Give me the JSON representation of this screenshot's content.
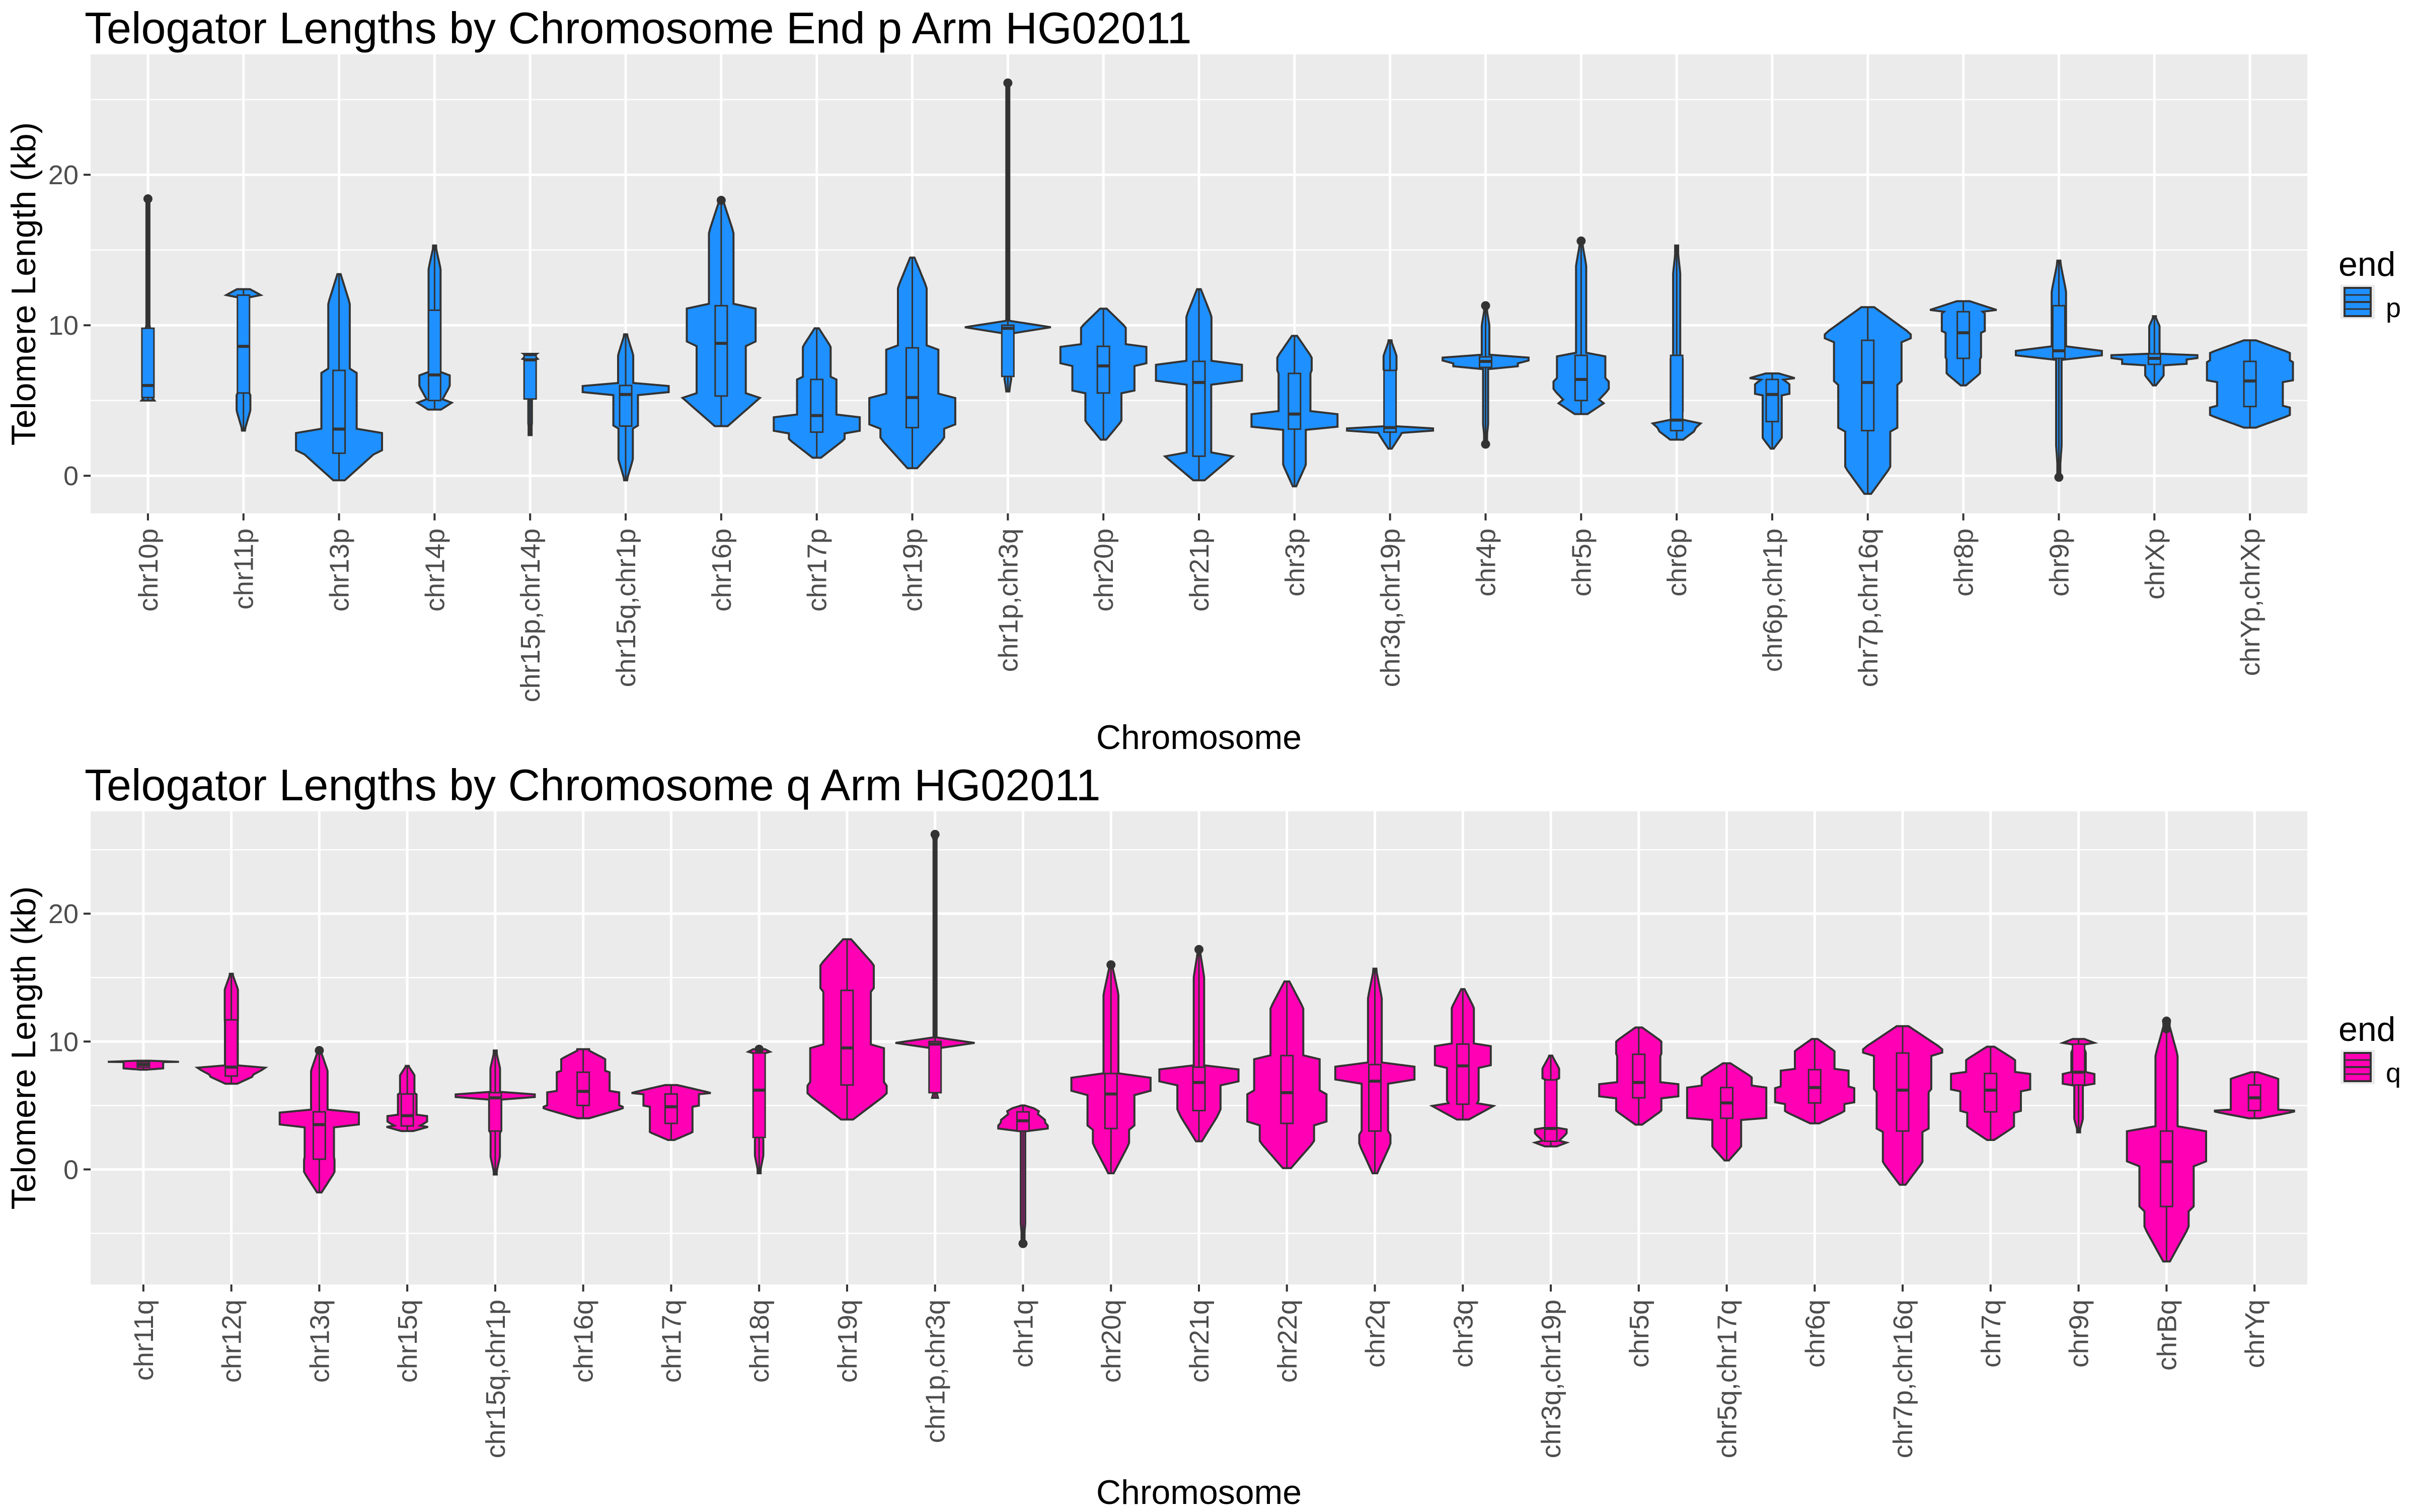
{
  "chart_data": [
    {
      "type": "violin",
      "title": "Telogator Lengths by Chromosome End p Arm HG02011",
      "xlabel": "Chromosome",
      "ylabel": "Telomere Length (kb)",
      "ylim": [
        -2.5,
        28
      ],
      "yticks": [
        0,
        10,
        20
      ],
      "grid": true,
      "legend": {
        "title": "end",
        "label": "p",
        "placement": "right"
      },
      "fill_color": "#1E90FF",
      "outline_color": "#333333",
      "categories": [
        "chr10p",
        "chr11p",
        "chr13p",
        "chr14p",
        "chr15p,chr14p",
        "chr15q,chr1p",
        "chr16p",
        "chr17p",
        "chr19p",
        "chr1p,chr3q",
        "chr20p",
        "chr21p",
        "chr3p",
        "chr3q,chr19p",
        "chr4p",
        "chr5p",
        "chr6p",
        "chr6p,chr1p",
        "chr7p,chr16q",
        "chr8p",
        "chr9p",
        "chrXp",
        "chrYp,chrXp"
      ],
      "series": [
        {
          "min": 5.0,
          "q1": 5.2,
          "median": 6.0,
          "q3": 9.8,
          "max": 18.4,
          "outliers": [
            18.4
          ]
        },
        {
          "min": 3.0,
          "q1": 5.5,
          "median": 8.6,
          "q3": 12.0,
          "max": 12.4,
          "outliers": []
        },
        {
          "min": -0.3,
          "q1": 1.5,
          "median": 3.1,
          "q3": 7.0,
          "max": 13.4,
          "outliers": []
        },
        {
          "min": 4.4,
          "q1": 5.0,
          "median": 6.7,
          "q3": 11.0,
          "max": 15.3,
          "outliers": []
        },
        {
          "min": 2.7,
          "q1": 5.1,
          "median": 7.7,
          "q3": 8.0,
          "max": 8.1,
          "outliers": []
        },
        {
          "min": -0.3,
          "q1": 3.3,
          "median": 5.4,
          "q3": 6.0,
          "max": 9.4,
          "outliers": []
        },
        {
          "min": 3.3,
          "q1": 5.3,
          "median": 8.8,
          "q3": 11.3,
          "max": 18.3,
          "outliers": [
            18.3
          ]
        },
        {
          "min": 1.2,
          "q1": 2.9,
          "median": 4.0,
          "q3": 6.4,
          "max": 9.8,
          "outliers": []
        },
        {
          "min": 0.5,
          "q1": 3.2,
          "median": 5.2,
          "q3": 8.5,
          "max": 14.5,
          "outliers": []
        },
        {
          "min": 5.6,
          "q1": 6.6,
          "median": 9.8,
          "q3": 10.0,
          "max": 26.1,
          "outliers": [
            26.1
          ]
        },
        {
          "min": 2.4,
          "q1": 5.5,
          "median": 7.3,
          "q3": 8.6,
          "max": 11.1,
          "outliers": []
        },
        {
          "min": -0.3,
          "q1": 1.3,
          "median": 6.2,
          "q3": 7.6,
          "max": 12.4,
          "outliers": []
        },
        {
          "min": -0.7,
          "q1": 3.1,
          "median": 4.1,
          "q3": 6.8,
          "max": 9.3,
          "outliers": []
        },
        {
          "min": 1.8,
          "q1": 2.9,
          "median": 3.2,
          "q3": 7.0,
          "max": 9.0,
          "outliers": []
        },
        {
          "min": 2.1,
          "q1": 7.2,
          "median": 7.6,
          "q3": 7.9,
          "max": 11.3,
          "outliers": [
            2.1,
            11.3
          ]
        },
        {
          "min": 4.1,
          "q1": 5.0,
          "median": 6.4,
          "q3": 8.0,
          "max": 15.6,
          "outliers": [
            15.6
          ]
        },
        {
          "min": 2.4,
          "q1": 3.0,
          "median": 3.7,
          "q3": 8.0,
          "max": 15.3,
          "outliers": []
        },
        {
          "min": 1.8,
          "q1": 3.6,
          "median": 5.4,
          "q3": 6.4,
          "max": 6.8,
          "outliers": []
        },
        {
          "min": -1.2,
          "q1": 3.0,
          "median": 6.2,
          "q3": 9.0,
          "max": 11.2,
          "outliers": []
        },
        {
          "min": 6.0,
          "q1": 7.8,
          "median": 9.5,
          "q3": 10.9,
          "max": 11.6,
          "outliers": []
        },
        {
          "min": -0.1,
          "q1": 7.8,
          "median": 8.3,
          "q3": 11.3,
          "max": 14.3,
          "outliers": [
            -0.1
          ]
        },
        {
          "min": 6.0,
          "q1": 7.4,
          "median": 7.8,
          "q3": 8.1,
          "max": 10.6,
          "outliers": []
        },
        {
          "min": 3.2,
          "q1": 4.6,
          "median": 6.3,
          "q3": 7.6,
          "max": 9.0,
          "outliers": []
        }
      ]
    },
    {
      "type": "violin",
      "title": "Telogator Lengths by Chromosome q Arm HG02011",
      "xlabel": "Chromosome",
      "ylabel": "Telomere Length (kb)",
      "ylim": [
        -9,
        28
      ],
      "yticks": [
        0,
        10,
        20
      ],
      "grid": true,
      "legend": {
        "title": "end",
        "label": "q",
        "placement": "right"
      },
      "fill_color": "#FF00B4",
      "outline_color": "#333333",
      "categories": [
        "chr11q",
        "chr12q",
        "chr13q",
        "chr15q",
        "chr15q,chr1p",
        "chr16q",
        "chr17q",
        "chr18q",
        "chr19q",
        "chr1p,chr3q",
        "chr1q",
        "chr20q",
        "chr21q",
        "chr22q",
        "chr2q",
        "chr3q",
        "chr3q,chr19p",
        "chr5q",
        "chr5q,chr17q",
        "chr6q",
        "chr7p,chr16q",
        "chr7q",
        "chr9q",
        "chrBq",
        "chrYq"
      ],
      "series": [
        {
          "min": 7.8,
          "q1": 8.0,
          "median": 8.2,
          "q3": 8.4,
          "max": 8.5,
          "outliers": []
        },
        {
          "min": 6.7,
          "q1": 7.3,
          "median": 8.0,
          "q3": 11.7,
          "max": 15.3,
          "outliers": []
        },
        {
          "min": -1.8,
          "q1": 0.8,
          "median": 3.5,
          "q3": 4.5,
          "max": 9.3,
          "outliers": [
            9.3
          ]
        },
        {
          "min": 3.0,
          "q1": 3.4,
          "median": 4.2,
          "q3": 5.9,
          "max": 8.1,
          "outliers": []
        },
        {
          "min": -0.4,
          "q1": 3.0,
          "median": 5.6,
          "q3": 6.0,
          "max": 9.3,
          "outliers": []
        },
        {
          "min": 4.0,
          "q1": 5.0,
          "median": 6.1,
          "q3": 7.6,
          "max": 9.4,
          "outliers": []
        },
        {
          "min": 2.3,
          "q1": 3.6,
          "median": 4.9,
          "q3": 5.9,
          "max": 6.6,
          "outliers": []
        },
        {
          "min": -0.3,
          "q1": 2.5,
          "median": 6.2,
          "q3": 9.1,
          "max": 9.4,
          "outliers": [
            9.4
          ]
        },
        {
          "min": 3.9,
          "q1": 6.6,
          "median": 9.5,
          "q3": 14.0,
          "max": 18.0,
          "outliers": []
        },
        {
          "min": 5.6,
          "q1": 6.0,
          "median": 9.8,
          "q3": 10.0,
          "max": 26.2,
          "outliers": [
            26.2
          ]
        },
        {
          "min": -5.8,
          "q1": 3.0,
          "median": 3.8,
          "q3": 4.5,
          "max": 5.0,
          "outliers": [
            -5.8
          ]
        },
        {
          "min": -0.3,
          "q1": 3.2,
          "median": 5.9,
          "q3": 7.5,
          "max": 16.0,
          "outliers": [
            16.0
          ]
        },
        {
          "min": 2.2,
          "q1": 4.6,
          "median": 6.8,
          "q3": 8.0,
          "max": 17.2,
          "outliers": [
            17.2
          ]
        },
        {
          "min": 0.1,
          "q1": 3.6,
          "median": 6.0,
          "q3": 8.9,
          "max": 14.7,
          "outliers": []
        },
        {
          "min": -0.3,
          "q1": 3.0,
          "median": 6.9,
          "q3": 8.2,
          "max": 15.7,
          "outliers": []
        },
        {
          "min": 3.9,
          "q1": 5.1,
          "median": 8.1,
          "q3": 9.8,
          "max": 14.1,
          "outliers": []
        },
        {
          "min": 1.8,
          "q1": 2.2,
          "median": 3.2,
          "q3": 7.0,
          "max": 8.9,
          "outliers": []
        },
        {
          "min": 3.5,
          "q1": 5.6,
          "median": 6.8,
          "q3": 9.0,
          "max": 11.1,
          "outliers": []
        },
        {
          "min": 0.7,
          "q1": 4.0,
          "median": 5.2,
          "q3": 6.4,
          "max": 8.3,
          "outliers": []
        },
        {
          "min": 3.6,
          "q1": 5.2,
          "median": 6.4,
          "q3": 7.8,
          "max": 10.2,
          "outliers": []
        },
        {
          "min": -1.2,
          "q1": 3.0,
          "median": 6.2,
          "q3": 9.1,
          "max": 11.2,
          "outliers": []
        },
        {
          "min": 2.3,
          "q1": 4.5,
          "median": 6.2,
          "q3": 7.5,
          "max": 9.6,
          "outliers": []
        },
        {
          "min": 2.9,
          "q1": 6.6,
          "median": 7.6,
          "q3": 9.8,
          "max": 10.2,
          "outliers": []
        },
        {
          "min": -7.2,
          "q1": -2.9,
          "median": 0.6,
          "q3": 3.0,
          "max": 11.6,
          "outliers": [
            11.6,
            11.0
          ]
        },
        {
          "min": 4.0,
          "q1": 4.6,
          "median": 5.6,
          "q3": 6.6,
          "max": 7.6,
          "outliers": []
        }
      ]
    }
  ]
}
